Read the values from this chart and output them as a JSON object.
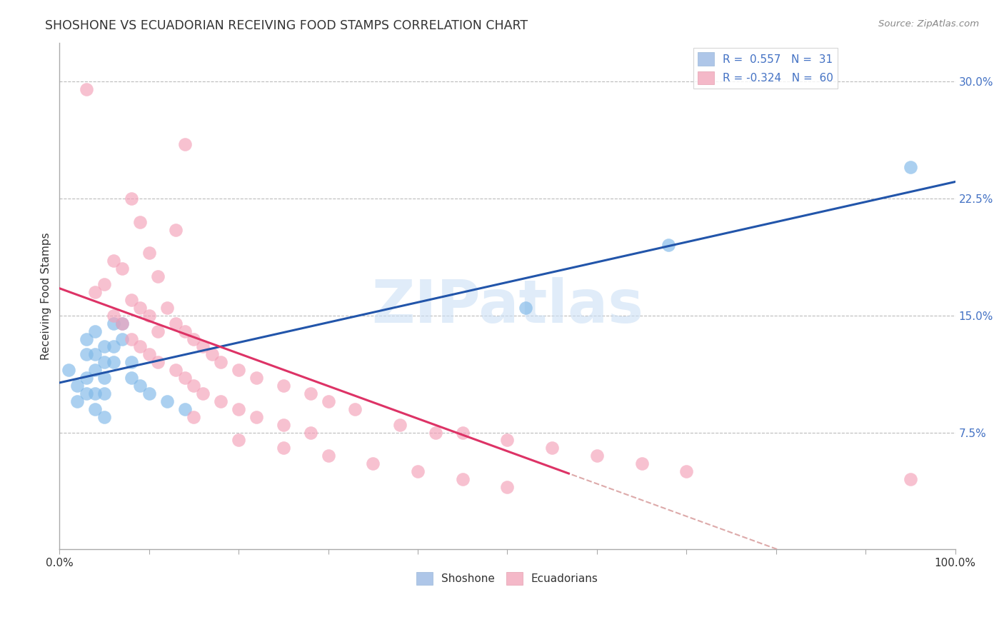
{
  "title": "SHOSHONE VS ECUADORIAN RECEIVING FOOD STAMPS CORRELATION CHART",
  "source_text": "Source: ZipAtlas.com",
  "ylabel": "Receiving Food Stamps",
  "xlim": [
    0,
    100
  ],
  "ylim": [
    0,
    32.5
  ],
  "yticks": [
    0,
    7.5,
    15.0,
    22.5,
    30.0
  ],
  "ytick_labels": [
    "",
    "7.5%",
    "15.0%",
    "22.5%",
    "30.0%"
  ],
  "watermark": "ZIPatlas",
  "shoshone_color": "#7fb8e8",
  "ecuadorian_color": "#f4a0b8",
  "shoshone_line_color": "#2255aa",
  "ecuadorian_line_color": "#dd3366",
  "background_color": "#ffffff",
  "grid_color": "#bbbbbb",
  "title_fontsize": 13,
  "label_fontsize": 11,
  "shoshone_dots": [
    [
      1,
      11.5
    ],
    [
      2,
      10.5
    ],
    [
      2,
      9.5
    ],
    [
      3,
      13.5
    ],
    [
      3,
      12.5
    ],
    [
      3,
      11.0
    ],
    [
      3,
      10.0
    ],
    [
      4,
      14.0
    ],
    [
      4,
      12.5
    ],
    [
      4,
      11.5
    ],
    [
      4,
      10.0
    ],
    [
      4,
      9.0
    ],
    [
      5,
      13.0
    ],
    [
      5,
      12.0
    ],
    [
      5,
      11.0
    ],
    [
      5,
      10.0
    ],
    [
      5,
      8.5
    ],
    [
      6,
      14.5
    ],
    [
      6,
      13.0
    ],
    [
      6,
      12.0
    ],
    [
      7,
      14.5
    ],
    [
      7,
      13.5
    ],
    [
      8,
      12.0
    ],
    [
      8,
      11.0
    ],
    [
      9,
      10.5
    ],
    [
      10,
      10.0
    ],
    [
      12,
      9.5
    ],
    [
      14,
      9.0
    ],
    [
      52,
      15.5
    ],
    [
      68,
      19.5
    ],
    [
      95,
      24.5
    ]
  ],
  "ecuadorian_dots": [
    [
      3,
      29.5
    ],
    [
      14,
      26.0
    ],
    [
      8,
      22.5
    ],
    [
      13,
      20.5
    ],
    [
      9,
      21.0
    ],
    [
      10,
      19.0
    ],
    [
      6,
      18.5
    ],
    [
      7,
      18.0
    ],
    [
      11,
      17.5
    ],
    [
      5,
      17.0
    ],
    [
      4,
      16.5
    ],
    [
      8,
      16.0
    ],
    [
      9,
      15.5
    ],
    [
      12,
      15.5
    ],
    [
      10,
      15.0
    ],
    [
      6,
      15.0
    ],
    [
      13,
      14.5
    ],
    [
      7,
      14.5
    ],
    [
      14,
      14.0
    ],
    [
      11,
      14.0
    ],
    [
      15,
      13.5
    ],
    [
      8,
      13.5
    ],
    [
      16,
      13.0
    ],
    [
      9,
      13.0
    ],
    [
      17,
      12.5
    ],
    [
      10,
      12.5
    ],
    [
      18,
      12.0
    ],
    [
      11,
      12.0
    ],
    [
      20,
      11.5
    ],
    [
      13,
      11.5
    ],
    [
      22,
      11.0
    ],
    [
      14,
      11.0
    ],
    [
      25,
      10.5
    ],
    [
      15,
      10.5
    ],
    [
      28,
      10.0
    ],
    [
      16,
      10.0
    ],
    [
      30,
      9.5
    ],
    [
      18,
      9.5
    ],
    [
      33,
      9.0
    ],
    [
      20,
      9.0
    ],
    [
      15,
      8.5
    ],
    [
      22,
      8.5
    ],
    [
      25,
      8.0
    ],
    [
      38,
      8.0
    ],
    [
      28,
      7.5
    ],
    [
      42,
      7.5
    ],
    [
      45,
      7.5
    ],
    [
      20,
      7.0
    ],
    [
      50,
      7.0
    ],
    [
      55,
      6.5
    ],
    [
      25,
      6.5
    ],
    [
      30,
      6.0
    ],
    [
      60,
      6.0
    ],
    [
      65,
      5.5
    ],
    [
      35,
      5.5
    ],
    [
      40,
      5.0
    ],
    [
      70,
      5.0
    ],
    [
      95,
      4.5
    ],
    [
      45,
      4.5
    ],
    [
      50,
      4.0
    ]
  ]
}
